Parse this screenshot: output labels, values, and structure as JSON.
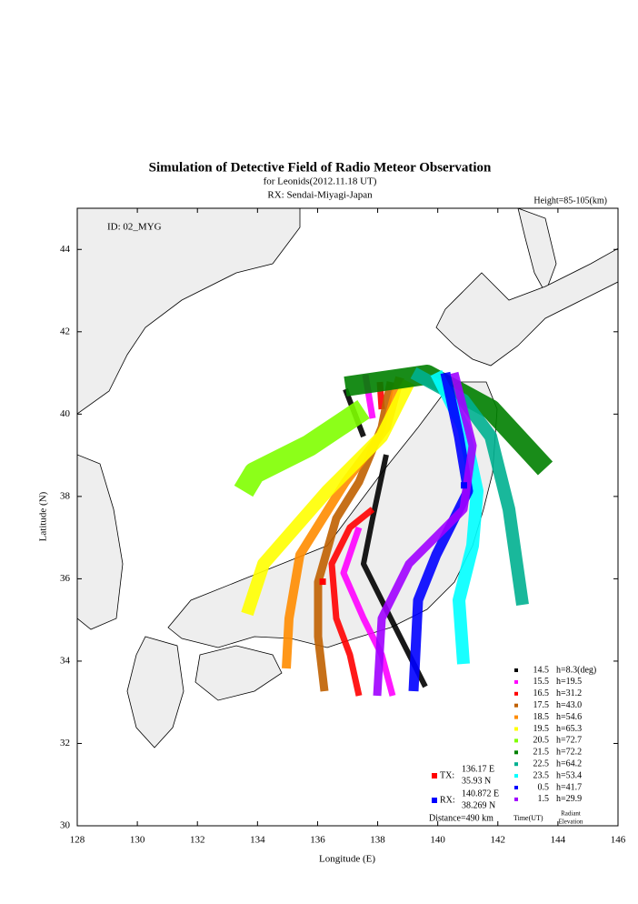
{
  "title": "Simulation of Detective Field of Radio Meteor Observation",
  "subtitle": "for Leonids(2012.11.18 UT)",
  "receiver": "RX: Sendai-Miyagi-Japan",
  "height_note": "Height=85-105(km)",
  "id_label": "ID: 02_MYG",
  "x_label": "Longitude (E)",
  "y_label": "Latitude (N)",
  "xlim": [
    128,
    146
  ],
  "xticks": [
    128,
    130,
    132,
    134,
    136,
    138,
    140,
    142,
    144,
    146
  ],
  "ylim": [
    30,
    45
  ],
  "yticks": [
    30,
    32,
    34,
    36,
    38,
    40,
    42,
    44
  ],
  "legend": [
    {
      "time": "14.5",
      "elevation": "h=8.3(deg)",
      "color": "#000000"
    },
    {
      "time": "15.5",
      "elevation": "h=19.5",
      "color": "#ff00ff"
    },
    {
      "time": "16.5",
      "elevation": "h=31.2",
      "color": "#ff0000"
    },
    {
      "time": "17.5",
      "elevation": "h=43.0",
      "color": "#c06000"
    },
    {
      "time": "18.5",
      "elevation": "h=54.6",
      "color": "#ff8c00"
    },
    {
      "time": "19.5",
      "elevation": "h=65.3",
      "color": "#ffff00"
    },
    {
      "time": "20.5",
      "elevation": "h=72.7",
      "color": "#80ff00"
    },
    {
      "time": "21.5",
      "elevation": "h=72.2",
      "color": "#008000"
    },
    {
      "time": "22.5",
      "elevation": "h=64.2",
      "color": "#00b090"
    },
    {
      "time": "23.5",
      "elevation": "h=53.4",
      "color": "#00ffff"
    },
    {
      "time": "0.5",
      "elevation": "h=41.7",
      "color": "#0000ff"
    },
    {
      "time": "1.5",
      "elevation": "h=29.9",
      "color": "#a000ff"
    }
  ],
  "legend_time_label": "Time(UT)",
  "legend_elevation_label": [
    "Radiant",
    "Elevation"
  ],
  "tx": {
    "label": "TX:",
    "color": "#ff0000",
    "lon": {
      "value": 136.17,
      "label": "136.17 E"
    },
    "lat": {
      "value": 35.93,
      "label": "35.93 N"
    }
  },
  "rx": {
    "label": "RX:",
    "color": "#0000ff",
    "lon": {
      "value": 140.872,
      "label": "140.872 E"
    },
    "lat": {
      "value": 38.269,
      "label": "38.269 N"
    }
  },
  "distance": "Distance=490 km"
}
